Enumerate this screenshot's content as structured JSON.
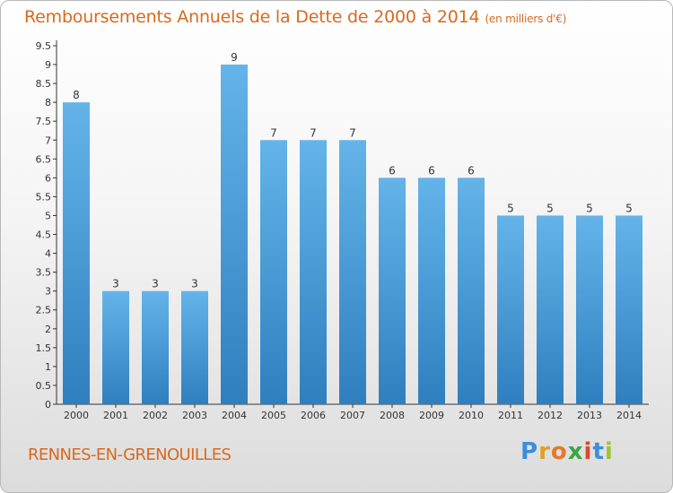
{
  "title": "Remboursements Annuels de la Dette de 2000 à 2014",
  "subtitle": "(en milliers d'€)",
  "commune": "RENNES-EN-GRENOUILLES",
  "logo": {
    "text": "Proxiti",
    "letters": [
      "P",
      "r",
      "o",
      "x",
      "i",
      "t",
      "i"
    ],
    "colors": [
      "#3a8fd8",
      "#e0a020",
      "#e8762b",
      "#3aa640",
      "#d64a2a",
      "#3a8fd8",
      "#9bc43a"
    ]
  },
  "colors": {
    "bar_light": "#64b4ea",
    "bar_dark": "#2f7fbf",
    "text_accent": "#d9691e"
  },
  "chart_data": {
    "type": "bar",
    "title": "Remboursements Annuels de la Dette de 2000 à 2014",
    "subtitle": "(en milliers d'€)",
    "xlabel": "",
    "ylabel": "",
    "categories": [
      "2000",
      "2001",
      "2002",
      "2003",
      "2004",
      "2005",
      "2006",
      "2007",
      "2008",
      "2009",
      "2010",
      "2011",
      "2012",
      "2013",
      "2014"
    ],
    "values": [
      8,
      3,
      3,
      3,
      9,
      7,
      7,
      7,
      6,
      6,
      6,
      5,
      5,
      5,
      5
    ],
    "data_labels": [
      "8",
      "3",
      "3",
      "3",
      "9",
      "7",
      "7",
      "7",
      "6",
      "6",
      "6",
      "5",
      "5",
      "5",
      "5"
    ],
    "ylim": [
      0,
      9.5
    ],
    "yticks": [
      0,
      0.5,
      1,
      1.5,
      2,
      2.5,
      3,
      3.5,
      4,
      4.5,
      5,
      5.5,
      6,
      6.5,
      7,
      7.5,
      8,
      8.5,
      9,
      9.5
    ],
    "ytick_labels": [
      "0",
      "0.5",
      "1",
      "1.5",
      "2",
      "2.5",
      "3",
      "3.5",
      "4",
      "4.5",
      "5",
      "5.5",
      "6",
      "6.5",
      "7",
      "7.5",
      "8",
      "8.5",
      "9",
      "9.5"
    ],
    "grid": false,
    "legend": "none"
  }
}
